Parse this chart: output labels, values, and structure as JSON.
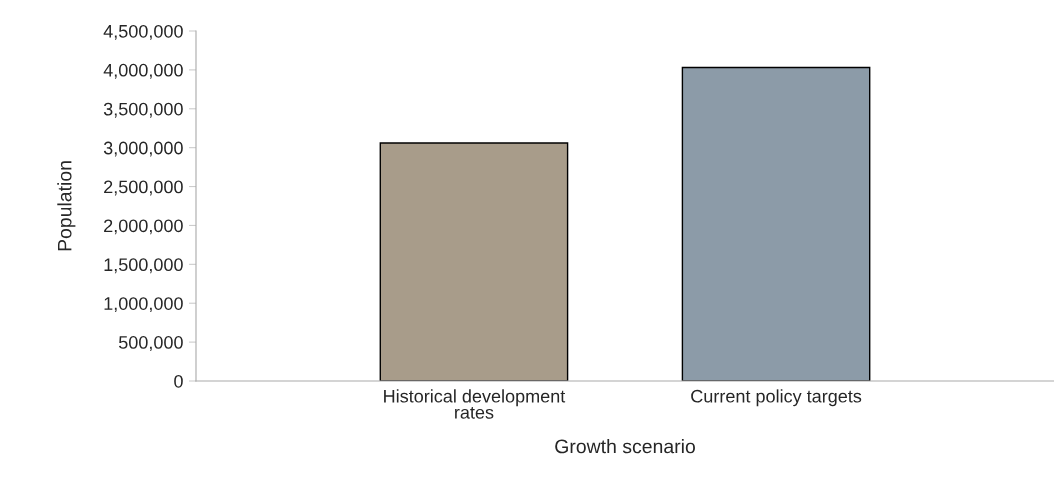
{
  "chart_data": {
    "type": "bar",
    "xlabel": "Growth scenario",
    "ylabel": "Population",
    "categories": [
      "Historical development rates",
      "Current policy targets"
    ],
    "series": [
      {
        "colors": [
          "#a89c8a",
          "#8c9ba8"
        ],
        "values": [
          3060000,
          4030000
        ]
      }
    ],
    "ylim": [
      0,
      4500000
    ],
    "yticks": [
      {
        "value": 0,
        "label": "0"
      },
      {
        "value": 500000,
        "label": "500,000"
      },
      {
        "value": 1000000,
        "label": "1,000,000"
      },
      {
        "value": 1500000,
        "label": "1,500,000"
      },
      {
        "value": 2000000,
        "label": "2,000,000"
      },
      {
        "value": 2500000,
        "label": "2,500,000"
      },
      {
        "value": 3000000,
        "label": "3,000,000"
      },
      {
        "value": 3500000,
        "label": "3,500,000"
      },
      {
        "value": 4000000,
        "label": "4,000,000"
      },
      {
        "value": 4500000,
        "label": "4,500,000"
      }
    ],
    "grid": false,
    "legend": false
  }
}
